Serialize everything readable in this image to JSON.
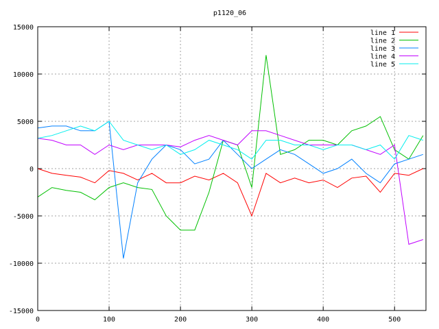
{
  "chart_data": {
    "type": "line",
    "title": "p1120_06",
    "xlabel": "",
    "ylabel": "",
    "xlim": [
      0,
      544
    ],
    "ylim": [
      -15000,
      15000
    ],
    "xticks": [
      0,
      100,
      200,
      300,
      400,
      500
    ],
    "yticks": [
      -15000,
      -10000,
      -5000,
      0,
      5000,
      10000,
      15000
    ],
    "grid": true,
    "legend_position": "top-right",
    "x": [
      0,
      20,
      40,
      60,
      80,
      100,
      120,
      140,
      160,
      180,
      200,
      220,
      240,
      260,
      280,
      300,
      320,
      340,
      360,
      380,
      400,
      420,
      440,
      460,
      480,
      500,
      520,
      540
    ],
    "series": [
      {
        "name": "line 1",
        "color": "#ff0000",
        "values": [
          0,
          -500,
          -700,
          -900,
          -1500,
          -200,
          -500,
          -1200,
          -500,
          -1500,
          -1500,
          -800,
          -1200,
          -500,
          -1500,
          -5000,
          -500,
          -1500,
          -1000,
          -1500,
          -1200,
          -2000,
          -1000,
          -800,
          -2500,
          -500,
          -700,
          0
        ]
      },
      {
        "name": "line 2",
        "color": "#00c000",
        "values": [
          -3000,
          -2000,
          -2300,
          -2500,
          -3300,
          -2000,
          -1500,
          -2000,
          -2200,
          -5000,
          -6500,
          -6500,
          -2500,
          3000,
          2500,
          -2000,
          12000,
          1500,
          2000,
          3000,
          3000,
          2500,
          4000,
          4500,
          5500,
          2000,
          1000,
          3500
        ]
      },
      {
        "name": "line 3",
        "color": "#0080ff",
        "values": [
          4300,
          4500,
          4500,
          4000,
          4000,
          5000,
          -9500,
          -1500,
          1000,
          2500,
          2000,
          500,
          1000,
          3000,
          1500,
          0,
          1000,
          2000,
          1500,
          500,
          -500,
          0,
          1000,
          -500,
          -1500,
          500,
          1000,
          1500
        ]
      },
      {
        "name": "line 4",
        "color": "#c000ff",
        "values": [
          3200,
          3000,
          2500,
          2500,
          1500,
          2500,
          2000,
          2500,
          2500,
          2500,
          2300,
          3000,
          3500,
          3000,
          2500,
          4000,
          4000,
          3500,
          3000,
          2500,
          2500,
          2500,
          2500,
          2000,
          1500,
          2500,
          -8000,
          -7500
        ]
      },
      {
        "name": "line 5",
        "color": "#00eeee",
        "values": [
          3200,
          3500,
          4000,
          4500,
          4000,
          5000,
          3000,
          2500,
          2000,
          2500,
          1500,
          2000,
          3000,
          2500,
          2000,
          1000,
          3000,
          3000,
          2500,
          2500,
          2000,
          2500,
          2500,
          2000,
          2500,
          1000,
          3500,
          3000
        ]
      }
    ]
  }
}
